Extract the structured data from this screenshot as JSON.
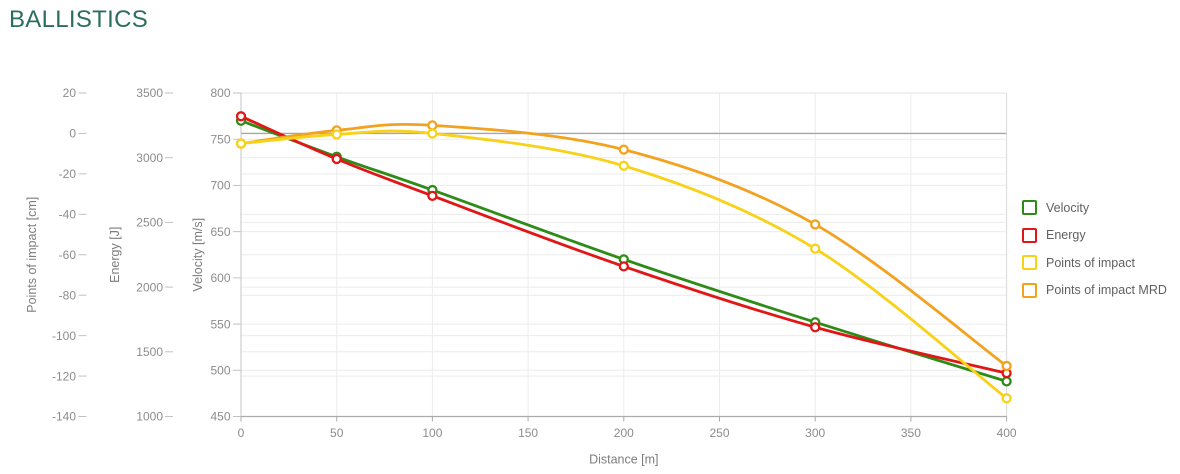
{
  "title": "BALLISTICS",
  "title_color": "#2b6e5f",
  "chart_data": {
    "type": "line",
    "title": "BALLISTICS",
    "xlabel": "Distance [m]",
    "xlim": [
      0,
      400
    ],
    "x_ticks": [
      0,
      50,
      100,
      150,
      200,
      250,
      300,
      350,
      400
    ],
    "x": [
      0,
      50,
      100,
      200,
      300,
      400
    ],
    "grid": true,
    "legend_position": "right",
    "axes": [
      {
        "id": "poi",
        "label": "Points of impact [cm]",
        "range": [
          -140,
          20
        ],
        "ticks": [
          20,
          0,
          -20,
          -40,
          -60,
          -80,
          -100,
          -120,
          -140
        ]
      },
      {
        "id": "energy",
        "label": "Energy [J]",
        "range": [
          1000,
          3500
        ],
        "ticks": [
          3500,
          3000,
          2500,
          2000,
          1500,
          1000
        ]
      },
      {
        "id": "velocity",
        "label": "Velocity [m/s]",
        "range": [
          450,
          800
        ],
        "ticks": [
          800,
          750,
          700,
          650,
          600,
          550,
          500,
          450
        ]
      }
    ],
    "series": [
      {
        "name": "Velocity",
        "axis": "velocity",
        "color": "#2e8b17",
        "marker": "circle-open",
        "values": [
          770,
          731,
          695,
          620,
          552,
          488
        ]
      },
      {
        "name": "Energy",
        "axis": "energy",
        "color": "#e11616",
        "marker": "circle-open",
        "values": [
          3320,
          2990,
          2705,
          2160,
          1690,
          1335
        ]
      },
      {
        "name": "Points of impact",
        "axis": "poi",
        "color": "#f7d219",
        "marker": "circle-open",
        "values": [
          -5,
          -0.5,
          0,
          -16,
          -57,
          -131
        ]
      },
      {
        "name": "Points of impact MRD",
        "axis": "poi",
        "color": "#f2a21f",
        "marker": "circle-open",
        "values": [
          -5,
          1.5,
          4,
          -8,
          -45,
          -115
        ]
      }
    ],
    "zero_line_axis": "poi",
    "colors": {
      "grid": "#ececec",
      "zero_line": "#a6a6a6",
      "axis_line": "#ababab",
      "tick_mark": "#c2c2c2"
    }
  }
}
